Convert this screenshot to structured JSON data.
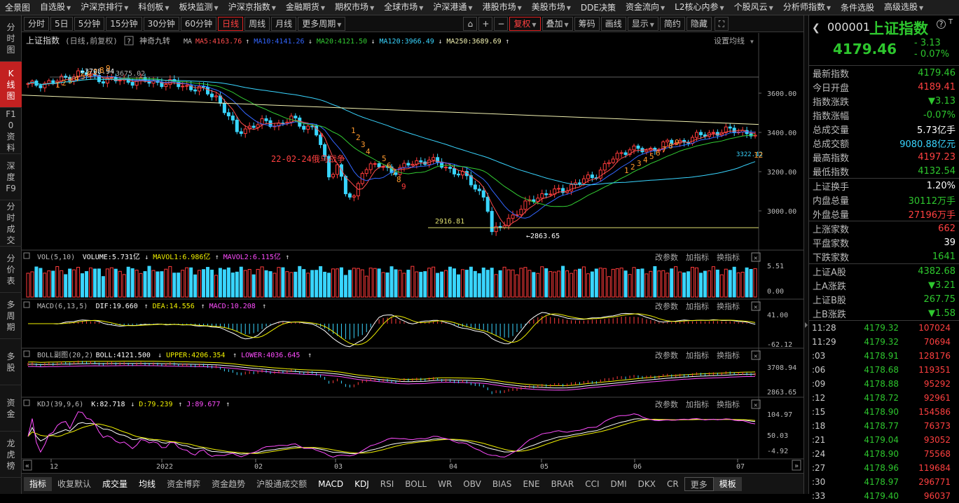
{
  "top_menu": [
    "全景图",
    "自选股",
    "沪深京排行",
    "科创板",
    "板块监测",
    "沪深京指数",
    "金融期货",
    "期权市场",
    "全球市场",
    "沪深港通",
    "港股市场",
    "美股市场",
    "DDE决策",
    "资金流向",
    "L2核心内参",
    "个股风云",
    "分析师指数",
    "条件选股",
    "高级选股"
  ],
  "top_menu_arrows": [
    false,
    true,
    true,
    true,
    true,
    true,
    true,
    true,
    true,
    true,
    true,
    true,
    false,
    true,
    true,
    true,
    true,
    false,
    true
  ],
  "side_tabs": [
    "分时图",
    "K线图",
    "F10资料",
    "深度F9",
    "分时成交",
    "分价表",
    "多周期",
    "多股",
    "资金",
    "龙虎榜"
  ],
  "side_active": 1,
  "toolbar": {
    "periods": [
      "分时",
      "5日",
      "5分钟",
      "15分钟",
      "30分钟",
      "60分钟",
      "日线",
      "周线",
      "月线",
      "更多周期"
    ],
    "active": 6,
    "right": [
      "复权",
      "叠加",
      "筹码",
      "画线",
      "显示",
      "简约",
      "隐藏"
    ]
  },
  "main_header": {
    "name": "上证指数",
    "mode": "(日线,前复权)",
    "help": "?",
    "indicator": "神奇九转",
    "ma_label": "MA",
    "ma5": "MA5:4163.76",
    "ma10": "MA10:4141.26",
    "ma20": "MA20:4121.50",
    "ma120": "MA120:3966.49",
    "ma250": "MA250:3689.69",
    "settings": "设置均线",
    "colors": {
      "ma5": "#ff4d4d",
      "ma10": "#3366ff",
      "ma20": "#33cc33",
      "ma120": "#39d5ff",
      "ma250": "#f0f0b0"
    }
  },
  "price_axis": [
    "3600.00",
    "3400.00",
    "3200.00",
    "3000.00"
  ],
  "annotations": {
    "high": "3708.94",
    "high2": "3675.02",
    "low": "2863.65",
    "line": "2916.81",
    "event": "22-02-24俄乌战争",
    "cur_band": "3322.42"
  },
  "nine_turn": {
    "top": [
      "1",
      "2",
      "3",
      "4",
      "5",
      "6",
      "7",
      "8",
      "9"
    ],
    "down": [
      "1",
      "2",
      "3",
      "4",
      "5",
      "6",
      "7",
      "8",
      "9"
    ],
    "up": [
      "1",
      "2",
      "3",
      "4",
      "5",
      "6",
      "7",
      "8",
      "9"
    ],
    "last": "12"
  },
  "panels": {
    "vol": {
      "name": "VOL(5,10)",
      "v1": "VOLUME:5.731亿",
      "v2": "MAVOL1:6.986亿",
      "v3": "MAVOL2:6.115亿",
      "axis_top": "5.51",
      "axis_bottom": "0.00"
    },
    "macd": {
      "name": "MACD(6,13,5)",
      "v1": "DIF:19.660",
      "v2": "DEA:14.556",
      "v3": "MACD:10.208",
      "axis_top": "41.00",
      "axis_bottom": "-62.12"
    },
    "boll": {
      "name": "BOLL副图(20,2)",
      "v1": "BOLL:4121.500",
      "v2": "UPPER:4206.354",
      "v3": "LOWER:4036.645",
      "axis_top": "3708.94",
      "axis_bottom": "2863.65"
    },
    "kdj": {
      "name": "KDJ(39,9,6)",
      "v1": "K:82.718",
      "v2": "D:79.239",
      "v3": "J:89.677",
      "axis_top": "104.97",
      "axis_mid": "50.03",
      "axis_bottom": "-4.92"
    },
    "tools": [
      "改参数",
      "加指标",
      "换指标"
    ]
  },
  "date_axis": [
    "12",
    "2022",
    "02",
    "03",
    "04",
    "05",
    "06",
    "07"
  ],
  "bottom_tabs": [
    "指标",
    "收复默认",
    "成交量",
    "均线",
    "资金博弈",
    "资金趋势",
    "沪股通成交额",
    "MACD",
    "KDJ",
    "RSI",
    "BOLL",
    "WR",
    "OBV",
    "BIAS",
    "ENE",
    "BRAR",
    "CCI",
    "DMI",
    "DKX",
    "CR",
    "更多",
    "模板"
  ],
  "quote": {
    "code": "000001",
    "name": "上证指数",
    "price": "4179.46",
    "change": "- 3.13",
    "pct": "- 0.07%"
  },
  "stats_groups": [
    [
      [
        "最新指数",
        "4179.46",
        "#2ec72e"
      ],
      [
        "今日开盘",
        "4189.41",
        "#ff4040"
      ],
      [
        "指数涨跌",
        "▼3.13",
        "#2ec72e"
      ],
      [
        "指数涨幅",
        "-0.07%",
        "#2ec72e"
      ],
      [
        "总成交量",
        "5.73亿手",
        "#ffffff"
      ],
      [
        "总成交额",
        "9080.88亿元",
        "#39d5ff"
      ],
      [
        "最高指数",
        "4197.23",
        "#ff4040"
      ],
      [
        "最低指数",
        "4132.54",
        "#2ec72e"
      ]
    ],
    [
      [
        "上证换手",
        "1.20%",
        "#ffffff"
      ],
      [
        "内盘总量",
        "30112万手",
        "#2ec72e"
      ],
      [
        "外盘总量",
        "27196万手",
        "#ff4040"
      ]
    ],
    [
      [
        "上涨家数",
        "662",
        "#ff4040"
      ],
      [
        "平盘家数",
        "39",
        "#ffffff"
      ],
      [
        "下跌家数",
        "1641",
        "#2ec72e"
      ]
    ],
    [
      [
        "上证A股",
        "4382.68",
        "#2ec72e"
      ],
      [
        "上A涨跌",
        "▼3.21",
        "#2ec72e"
      ],
      [
        "上证B股",
        "267.75",
        "#2ec72e"
      ],
      [
        "上B涨跌",
        "▼1.58",
        "#2ec72e"
      ]
    ]
  ],
  "ticks": [
    [
      "11:28",
      "4179.32",
      "107024"
    ],
    [
      "11:29",
      "4179.32",
      "70694"
    ],
    [
      ":03",
      "4178.91",
      "128176"
    ],
    [
      ":06",
      "4178.68",
      "119351"
    ],
    [
      ":09",
      "4178.88",
      "95292"
    ],
    [
      ":12",
      "4178.72",
      "92961"
    ],
    [
      ":15",
      "4178.90",
      "154586"
    ],
    [
      ":18",
      "4178.77",
      "76373"
    ],
    [
      ":21",
      "4179.04",
      "93052"
    ],
    [
      ":24",
      "4178.90",
      "75568"
    ],
    [
      ":27",
      "4178.96",
      "119684"
    ],
    [
      ":30",
      "4178.97",
      "296771"
    ],
    [
      ":33",
      "4179.40",
      "96037"
    ]
  ]
}
